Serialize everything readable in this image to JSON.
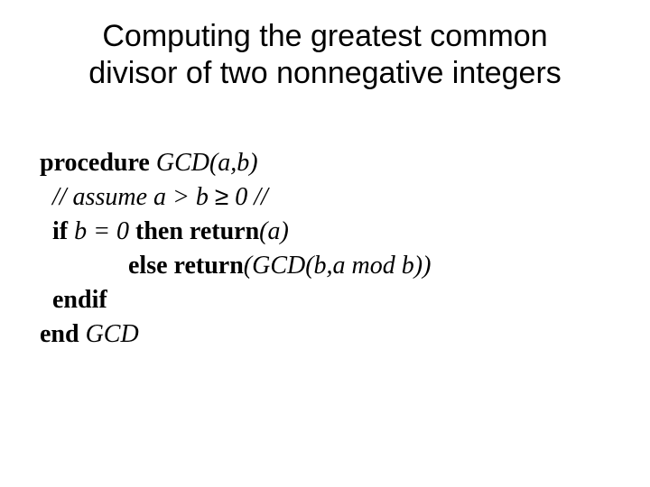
{
  "title_fontsize": 34,
  "body_fontsize": 28,
  "background_color": "#ffffff",
  "text_color": "#000000",
  "title_font": "Arial",
  "body_font": "Times New Roman",
  "title": "Computing the greatest common divisor of two nonnegative integers",
  "proc_kw": "procedure",
  "proc_name": " GCD(a,b)",
  "comment_pre": "  // assume a > b ",
  "geq": "≥",
  "comment_post": " 0 //",
  "if_kw": "  if",
  "if_cond": " b = 0 ",
  "then_kw": "then",
  "return_kw": " return",
  "ret_a": "(a)",
  "else_pad": "              ",
  "else_kw": "else",
  "ret_gcd": "(GCD(b,a mod b))",
  "endif_kw": "  endif",
  "end_kw": "end",
  "end_name": " GCD"
}
